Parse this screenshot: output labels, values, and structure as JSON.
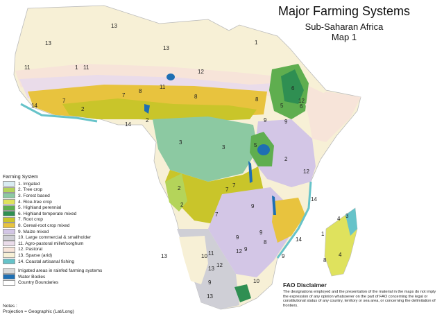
{
  "title": {
    "main": "Major Farming Systems",
    "region": "Sub-Saharan Africa",
    "map_no": "Map 1"
  },
  "legend": {
    "heading": "Farming System",
    "systems": [
      {
        "label": "1. Irrigated",
        "color": "#d9ecf2"
      },
      {
        "label": "2. Tree crop",
        "color": "#b4d45a"
      },
      {
        "label": "3. Forest based",
        "color": "#8cc9a2"
      },
      {
        "label": "4. Rice-tree crop",
        "color": "#dfe25d"
      },
      {
        "label": "5. Highland perennial",
        "color": "#5fae4f"
      },
      {
        "label": "6. Highland temperate mixed",
        "color": "#2f8f52"
      },
      {
        "label": "7. Root crop",
        "color": "#c9c52a"
      },
      {
        "label": "8. Cereal-root crop mixed",
        "color": "#e8c33e"
      },
      {
        "label": "9. Maize mixed",
        "color": "#d3c6e6"
      },
      {
        "label": "10. Large commercial & smallholder",
        "color": "#cfcfd6"
      },
      {
        "label": "11. Agro-pastoral millet/sorghum",
        "color": "#eadcea"
      },
      {
        "label": "12. Pastoral",
        "color": "#f7e4d9"
      },
      {
        "label": "13. Sparse (arid)",
        "color": "#f7f0d6"
      },
      {
        "label": "14. Coastal artisanal fishing",
        "color": "#66c3c9"
      }
    ],
    "extras": [
      {
        "label": "Irrigated areas in rainfed farming systems",
        "color": "#d9d9d9"
      },
      {
        "label": "Water Bodies",
        "color": "#1e6fb3"
      },
      {
        "label": "Country Boundaries",
        "color": "#ffffff"
      }
    ]
  },
  "notes": {
    "heading": "Notes :",
    "projection": "Projection = Geographic (Lat/Long)"
  },
  "disclaimer": {
    "heading": "FAO Disclaimer",
    "text": "The designations employed and the presentation of the material in the maps do not imply the expression of any opinion whatsoever on the part of FAO concerning the legal or constitutional status of any country, territory or sea area, or concerning the delimitation of frontiers."
  },
  "map_labels": [
    "13",
    "13",
    "13",
    "1",
    "1",
    "11",
    "11",
    "12",
    "12",
    "11",
    "8",
    "8",
    "8",
    "6",
    "5",
    "6",
    "7",
    "7",
    "14",
    "2",
    "2",
    "14",
    "9",
    "9",
    "3",
    "3",
    "5",
    "2",
    "12",
    "7",
    "7",
    "7",
    "2",
    "2",
    "9",
    "9",
    "8",
    "9",
    "9",
    "9",
    "14",
    "14",
    "12",
    "11",
    "12",
    "10",
    "13",
    "10",
    "9",
    "13",
    "4",
    "3",
    "4",
    "8",
    "13",
    "1"
  ]
}
